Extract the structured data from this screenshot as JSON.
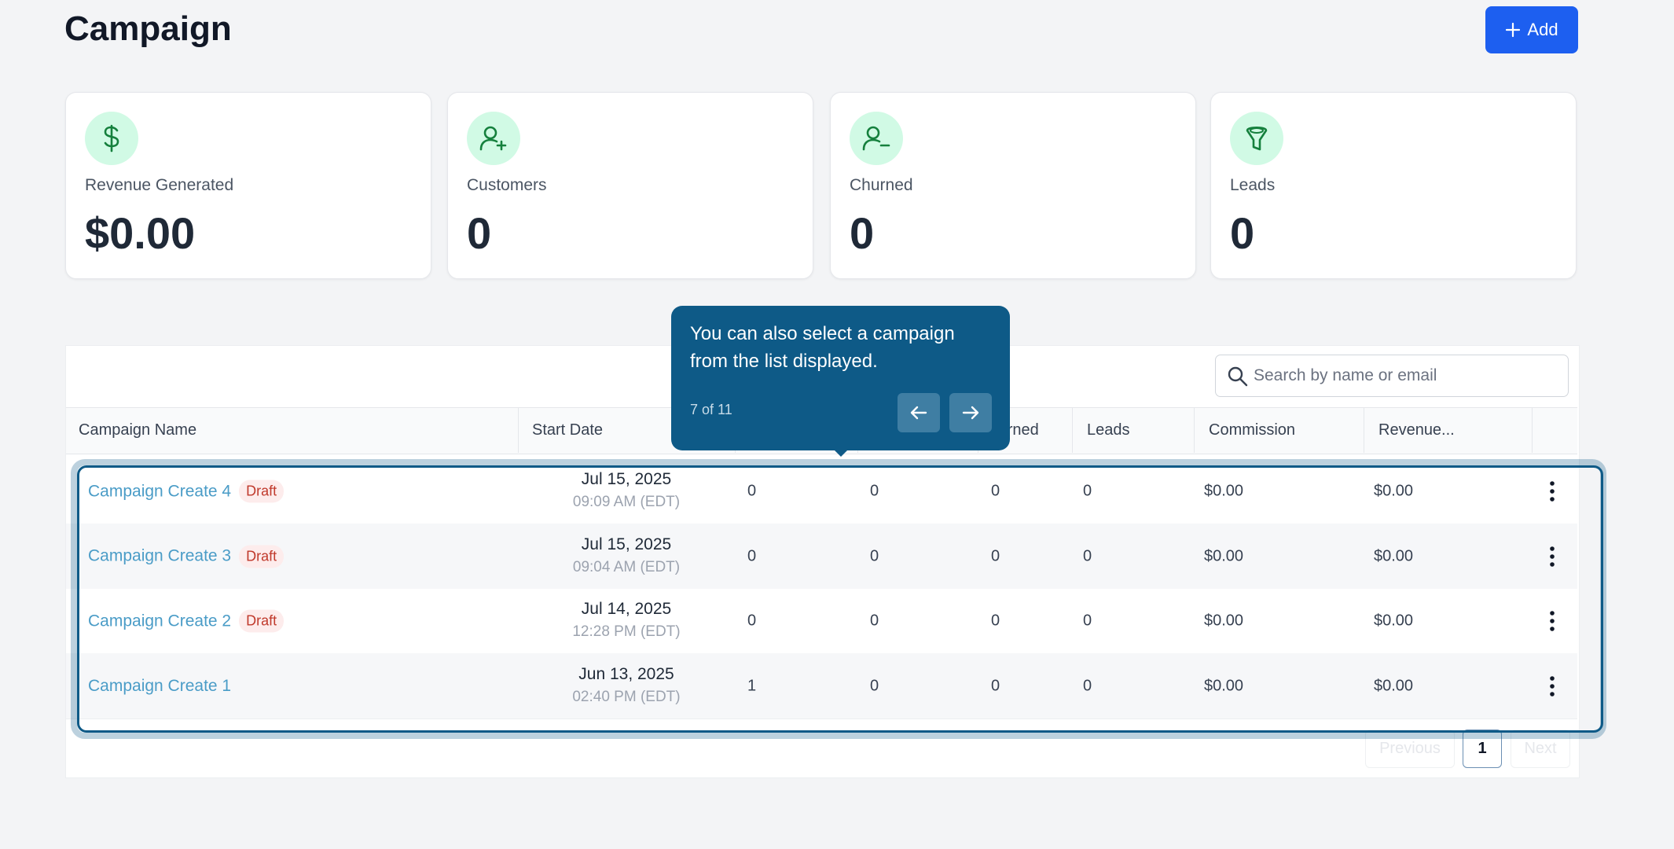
{
  "header": {
    "title": "Campaign",
    "add_button": "Add"
  },
  "cards": [
    {
      "label": "Revenue Generated",
      "value": "$0.00"
    },
    {
      "label": "Customers",
      "value": 0
    },
    {
      "label": "Churned",
      "value": 0
    },
    {
      "label": "Leads",
      "value": 0
    }
  ],
  "search_placeholder": "Search by name or email",
  "table": {
    "columns": [
      "Campaign Name",
      "Start Date",
      "Churned",
      "Leads",
      "Commission",
      "Revenue..."
    ],
    "rows": [
      {
        "name": "Campaign Create 4",
        "status": "Draft",
        "date": "Jul 15, 2025",
        "time": "09:09 AM (EDT)",
        "cells": [
          0,
          0,
          0,
          0,
          "$0.00",
          "$0.00"
        ]
      },
      {
        "name": "Campaign Create 3",
        "status": "Draft",
        "date": "Jul 15, 2025",
        "time": "09:04 AM (EDT)",
        "cells": [
          0,
          0,
          0,
          0,
          "$0.00",
          "$0.00"
        ]
      },
      {
        "name": "Campaign Create 2",
        "status": "Draft",
        "date": "Jul 14, 2025",
        "time": "12:28 PM (EDT)",
        "cells": [
          0,
          0,
          0,
          0,
          "$0.00",
          "$0.00"
        ]
      },
      {
        "name": "Campaign Create 1",
        "date": "Jun 13, 2025",
        "time": "02:40 PM (EDT)",
        "cells": [
          1,
          0,
          0,
          0,
          "$0.00",
          "$0.00"
        ]
      }
    ]
  },
  "pagination": {
    "previous": "Previous",
    "page": 1,
    "next": "Next"
  },
  "tooltip": {
    "text": "You can also select a campaign from the list displayed.",
    "progress": "7 of 11"
  }
}
